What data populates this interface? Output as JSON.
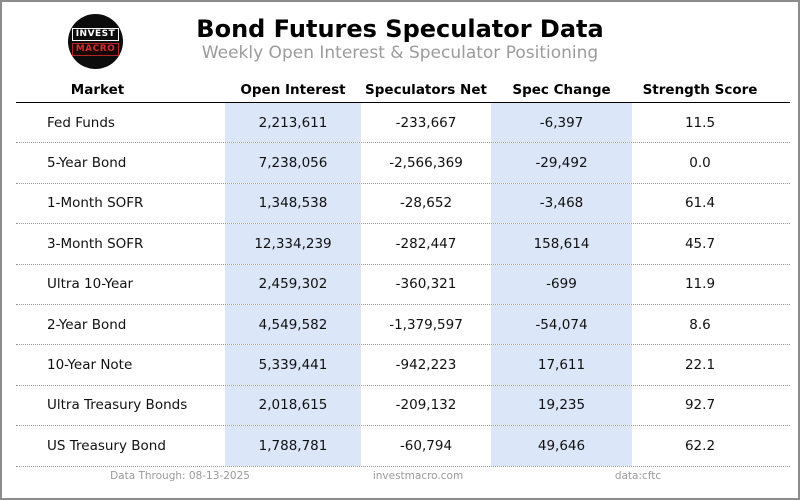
{
  "page": {
    "title": "Bond Futures Speculator Data",
    "subtitle": "Weekly Open Interest & Speculator Positioning",
    "logo": {
      "top": "INVEST",
      "bottom": "MACRO"
    }
  },
  "chart_data": {
    "type": "table",
    "title": "Bond Futures Speculator Data",
    "subtitle": "Weekly Open Interest & Speculator Positioning",
    "columns": [
      "Market",
      "Open Interest",
      "Speculators Net",
      "Spec Change",
      "Strength Score"
    ],
    "highlighted_columns": [
      "Open Interest",
      "Spec Change"
    ],
    "highlight_color": "#dbe6f8",
    "rows": [
      {
        "market": "Fed Funds",
        "open_interest": "2,213,611",
        "speculators_net": "-233,667",
        "spec_change": "-6,397",
        "strength_score": "11.5"
      },
      {
        "market": "5-Year Bond",
        "open_interest": "7,238,056",
        "speculators_net": "-2,566,369",
        "spec_change": "-29,492",
        "strength_score": "0.0"
      },
      {
        "market": "1-Month SOFR",
        "open_interest": "1,348,538",
        "speculators_net": "-28,652",
        "spec_change": "-3,468",
        "strength_score": "61.4"
      },
      {
        "market": "3-Month SOFR",
        "open_interest": "12,334,239",
        "speculators_net": "-282,447",
        "spec_change": "158,614",
        "strength_score": "45.7"
      },
      {
        "market": "Ultra 10-Year",
        "open_interest": "2,459,302",
        "speculators_net": "-360,321",
        "spec_change": "-699",
        "strength_score": "11.9"
      },
      {
        "market": "2-Year Bond",
        "open_interest": "4,549,582",
        "speculators_net": "-1,379,597",
        "spec_change": "-54,074",
        "strength_score": "8.6"
      },
      {
        "market": "10-Year Note",
        "open_interest": "5,339,441",
        "speculators_net": "-942,223",
        "spec_change": "17,611",
        "strength_score": "22.1"
      },
      {
        "market": "Ultra Treasury Bonds",
        "open_interest": "2,018,615",
        "speculators_net": "-209,132",
        "spec_change": "19,235",
        "strength_score": "92.7"
      },
      {
        "market": "US Treasury Bond",
        "open_interest": "1,788,781",
        "speculators_net": "-60,794",
        "spec_change": "49,646",
        "strength_score": "62.2"
      }
    ]
  },
  "footer": {
    "data_through": "Data Through: 08-13-2025",
    "website": "investmacro.com",
    "source": "data:cftc"
  }
}
